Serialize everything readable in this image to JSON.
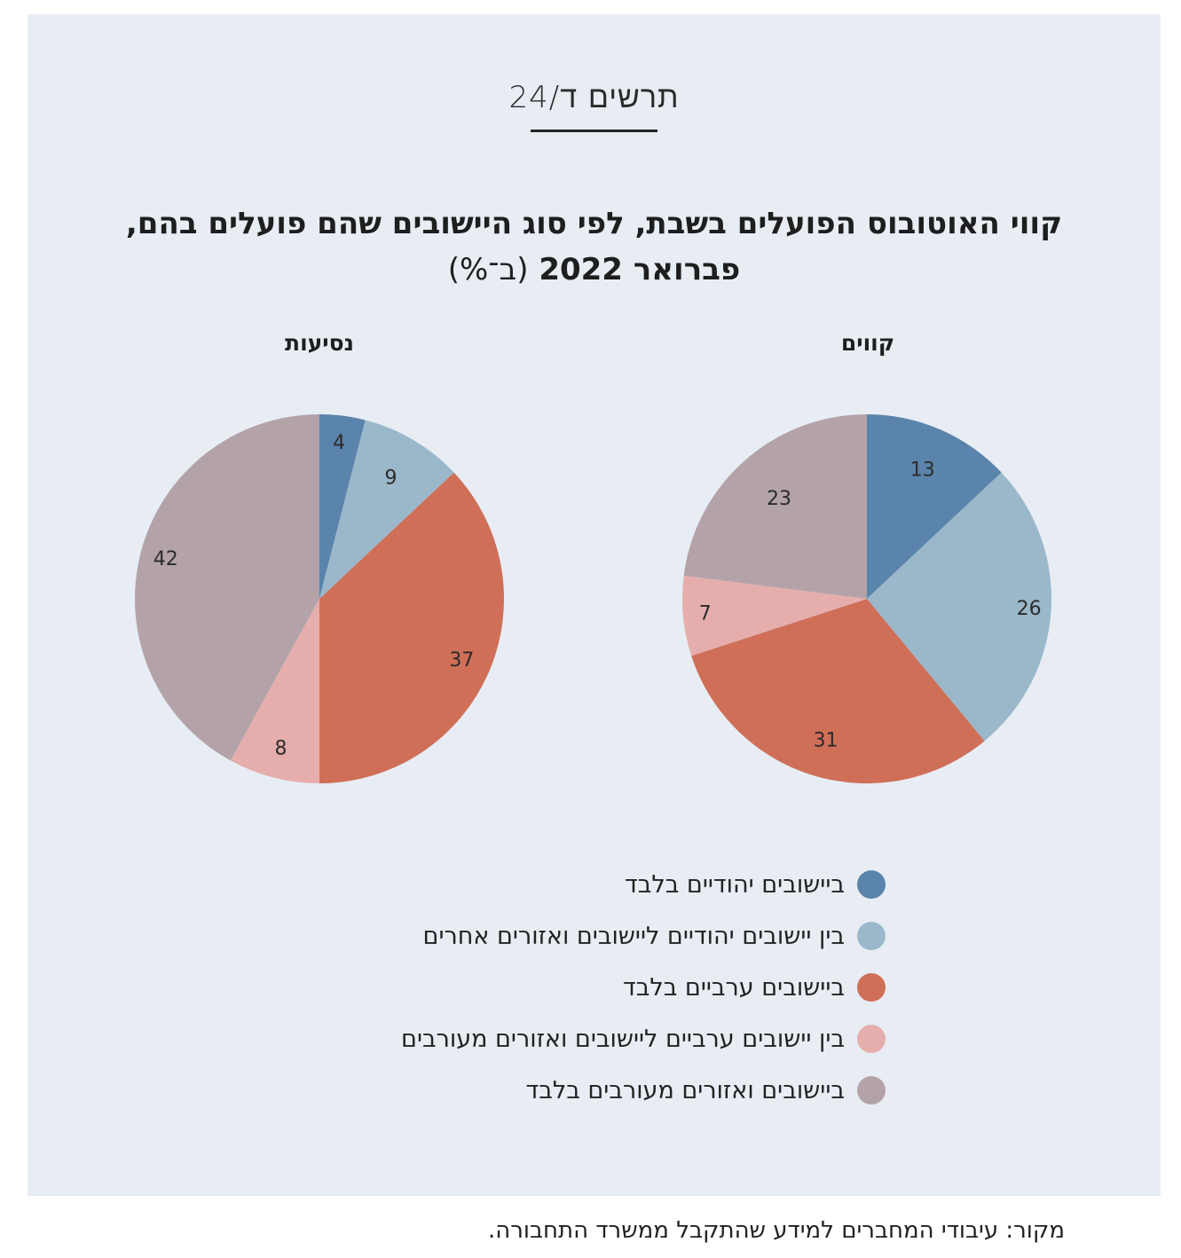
{
  "figure_number": "תרשים ד/24",
  "title_line1": "קווי האוטובוס הפועלים בשבת, לפי סוג היישובים שהם פועלים בהם,",
  "title_line2_bold": "פברואר 2022",
  "title_line2_unit": "(ב־%)",
  "source": "מקור: עיבודי המחברים למידע שהתקבל ממשרד התחבורה.",
  "chart_data": [
    {
      "type": "pie",
      "title": "קווים",
      "categories": [
        "ביישובים יהודיים בלבד",
        "בין יישובים יהודיים ליישובים ואזורים אחרים",
        "ביישובים ערביים בלבד",
        "בין יישובים ערביים ליישובים ואזורים מעורבים",
        "ביישובים ואזורים מעורבים בלבד"
      ],
      "values": [
        13,
        26,
        31,
        7,
        23
      ]
    },
    {
      "type": "pie",
      "title": "נסיעות",
      "categories": [
        "ביישובים יהודיים בלבד",
        "בין יישובים יהודיים ליישובים ואזורים אחרים",
        "ביישובים ערביים בלבד",
        "בין יישובים ערביים ליישובים ואזורים מעורבים",
        "ביישובים ואזורים מעורבים בלבד"
      ],
      "values": [
        4,
        9,
        37,
        8,
        42
      ]
    }
  ],
  "legend": [
    {
      "label": "ביישובים יהודיים בלבד",
      "color": "#5a84ab"
    },
    {
      "label": "בין יישובים יהודיים ליישובים ואזורים אחרים",
      "color": "#9bb8cb"
    },
    {
      "label": "ביישובים ערביים בלבד",
      "color": "#cf6f58"
    },
    {
      "label": "בין יישובים ערביים ליישובים ואזורים מעורבים",
      "color": "#e5aeac"
    },
    {
      "label": "ביישובים ואזורים מעורבים בלבד",
      "color": "#b3a3a8"
    }
  ]
}
